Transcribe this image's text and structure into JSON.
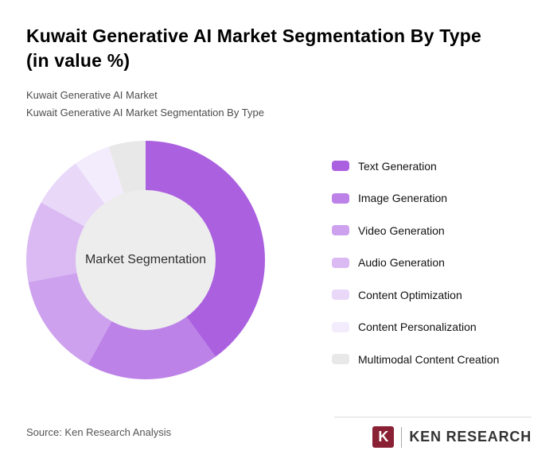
{
  "header": {
    "title_lines": {
      "0": "Kuwait Generative AI Market Segmentation By Type",
      "1": "(in value %)"
    },
    "subtitle_line1": "Kuwait Generative AI Market",
    "subtitle_line2": "Kuwait Generative AI Market Segmentation By Type"
  },
  "chart_data": {
    "type": "pie",
    "variant": "donut",
    "title": "Kuwait Generative AI Market Segmentation By Type (in value %)",
    "center_label": "Market Segmentation",
    "units": "value %",
    "legend_position": "right",
    "start_angle_deg": 0,
    "series": [
      {
        "label": "Text Generation",
        "value": 40,
        "color": "#ab60e0"
      },
      {
        "label": "Image Generation",
        "value": 18,
        "color": "#bd82e8"
      },
      {
        "label": "Video Generation",
        "value": 14,
        "color": "#cda1ee"
      },
      {
        "label": "Audio Generation",
        "value": 11,
        "color": "#dbbaf3"
      },
      {
        "label": "Content Optimization",
        "value": 7,
        "color": "#e9d8f8"
      },
      {
        "label": "Content Personalization",
        "value": 5,
        "color": "#f3ecfc"
      },
      {
        "label": "Multimodal Content Creation",
        "value": 5,
        "color": "#e8e8e8"
      }
    ]
  },
  "footer": {
    "source": "Source: Ken Research Analysis",
    "logo_letter": "K",
    "logo_text": "KEN RESEARCH"
  }
}
